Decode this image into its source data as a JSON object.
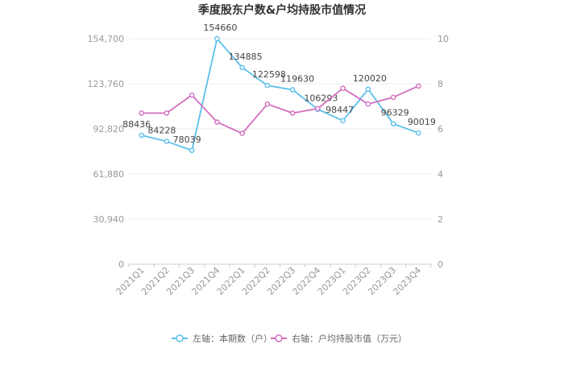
{
  "chart_data": {
    "type": "line",
    "title": "季度股东户数&户均持股市值情况",
    "categories": [
      "2021Q1",
      "2021Q2",
      "2021Q3",
      "2021Q4",
      "2022Q1",
      "2022Q2",
      "2022Q3",
      "2022Q4",
      "2023Q1",
      "2023Q2",
      "2023Q3",
      "2023Q4"
    ],
    "left_axis": {
      "min": 0,
      "max": 154700,
      "ticks": [
        "0",
        "30,940",
        "61,880",
        "92,820",
        "123,760",
        "154,700"
      ]
    },
    "right_axis": {
      "min": 0,
      "max": 10,
      "ticks": [
        "0",
        "2",
        "4",
        "6",
        "8",
        "10"
      ]
    },
    "series": [
      {
        "name": "左轴：本期数（户）",
        "axis": "left",
        "color": "#5bc0eb",
        "values": [
          88436,
          84228,
          78039,
          154660,
          134885,
          122598,
          119630,
          106293,
          98447,
          120020,
          96329,
          90019
        ],
        "labels": [
          "88436",
          "84228",
          "78039",
          "154660",
          "134885",
          "122598",
          "119630",
          "106293",
          "98447",
          "120020",
          "96329",
          "90019"
        ]
      },
      {
        "name": "右轴：户均持股市值（万元）",
        "axis": "right",
        "color": "#d36fbf",
        "values": [
          6.7,
          6.7,
          7.5,
          6.3,
          5.8,
          7.1,
          6.7,
          6.9,
          7.8,
          7.1,
          7.4,
          7.9
        ]
      }
    ],
    "grid": true,
    "legend_position": "bottom"
  }
}
